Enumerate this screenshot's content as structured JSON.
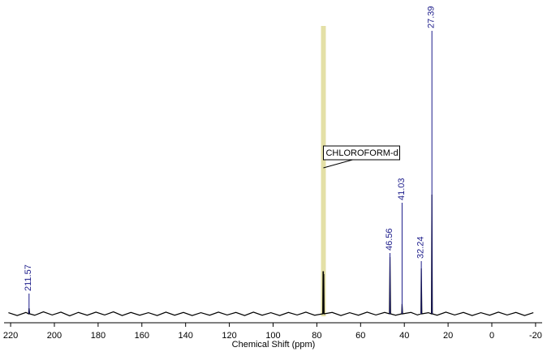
{
  "chart_data": {
    "type": "line",
    "x_label": "Chemical Shift (ppm)",
    "xlim": [
      223,
      -23
    ],
    "ylim": [
      -3,
      102
    ],
    "xticks": [
      220,
      200,
      180,
      160,
      140,
      120,
      100,
      80,
      60,
      40,
      20,
      0,
      -20
    ],
    "color": "#000000",
    "x": [
      221,
      217,
      213,
      211.8,
      211.57,
      211.3,
      209,
      205,
      201,
      197,
      193,
      189,
      185,
      181,
      177,
      173,
      169,
      165,
      161,
      157,
      153,
      149,
      145,
      141,
      137,
      133,
      129,
      125,
      121,
      117,
      113,
      109,
      105,
      101,
      97,
      93,
      89,
      85,
      81,
      77.3,
      77.16,
      77.08,
      77.0,
      76.92,
      76.84,
      76.7,
      73,
      69,
      65,
      61,
      57,
      53,
      49,
      46.8,
      46.56,
      46.3,
      44,
      41.2,
      41.03,
      40.8,
      37,
      34,
      32.4,
      32.24,
      32.0,
      29,
      27.6,
      27.39,
      27.2,
      25,
      21,
      17,
      13,
      9,
      5,
      1,
      -3,
      -7,
      -11,
      -15,
      -19
    ],
    "values": [
      0.4,
      -0.6,
      0.5,
      0,
      2,
      0,
      -0.5,
      0.7,
      -0.4,
      0.6,
      -0.7,
      0.5,
      -0.5,
      0.6,
      -0.4,
      0.7,
      -0.6,
      0.5,
      -0.5,
      0.4,
      -0.6,
      0.6,
      -0.5,
      0.5,
      -0.6,
      0.4,
      -0.5,
      0.6,
      -0.4,
      0.5,
      -0.6,
      0.6,
      -0.5,
      0.4,
      -0.6,
      0.5,
      -0.4,
      0.6,
      -0.5,
      0,
      15,
      0,
      15,
      0,
      14,
      0,
      0.5,
      -0.6,
      0.4,
      -0.5,
      0.6,
      -0.4,
      0.5,
      0,
      20,
      0,
      -0.5,
      0,
      3.5,
      0,
      0.5,
      -0.4,
      0,
      16,
      0,
      0.4,
      0,
      42,
      0,
      -0.5,
      0.6,
      -0.4,
      0.5,
      -0.6,
      0.4,
      -0.5,
      0.6,
      -0.4,
      0.5,
      -0.6,
      0.4
    ],
    "peaks": [
      211.57,
      46.56,
      41.03,
      32.24,
      27.39
    ],
    "peak_color": "#1c1c8a",
    "band": [
      78.1,
      75.9
    ],
    "band_color": "#e4e0a6",
    "annotations": [
      {
        "text": "CHLOROFORM-d",
        "x": 77
      }
    ]
  }
}
